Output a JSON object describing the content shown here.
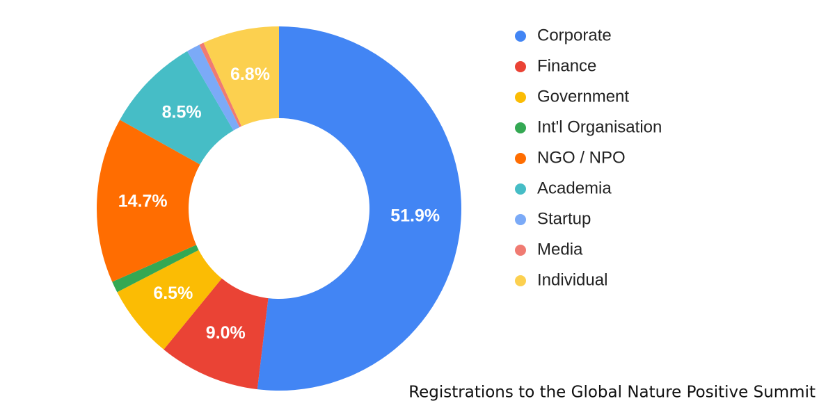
{
  "chart_data": {
    "type": "donut",
    "title": "Registrations to the Global Nature Positive Summit",
    "categories": [
      "Corporate",
      "Finance",
      "Government",
      "Int'l Organisation",
      "NGO / NPO",
      "Academia",
      "Startup",
      "Media",
      "Individual"
    ],
    "values": [
      51.9,
      9.0,
      6.5,
      1.0,
      14.7,
      8.5,
      1.2,
      0.4,
      6.8
    ],
    "value_labels": [
      "51.9%",
      "9.0%",
      "6.5%",
      null,
      "14.7%",
      "8.5%",
      null,
      null,
      "6.8%"
    ],
    "colors": [
      "#4285f4",
      "#ea4335",
      "#fbbc04",
      "#34a853",
      "#ff6d01",
      "#46bdc6",
      "#7baaf7",
      "#f07b72",
      "#fcd04f"
    ]
  }
}
